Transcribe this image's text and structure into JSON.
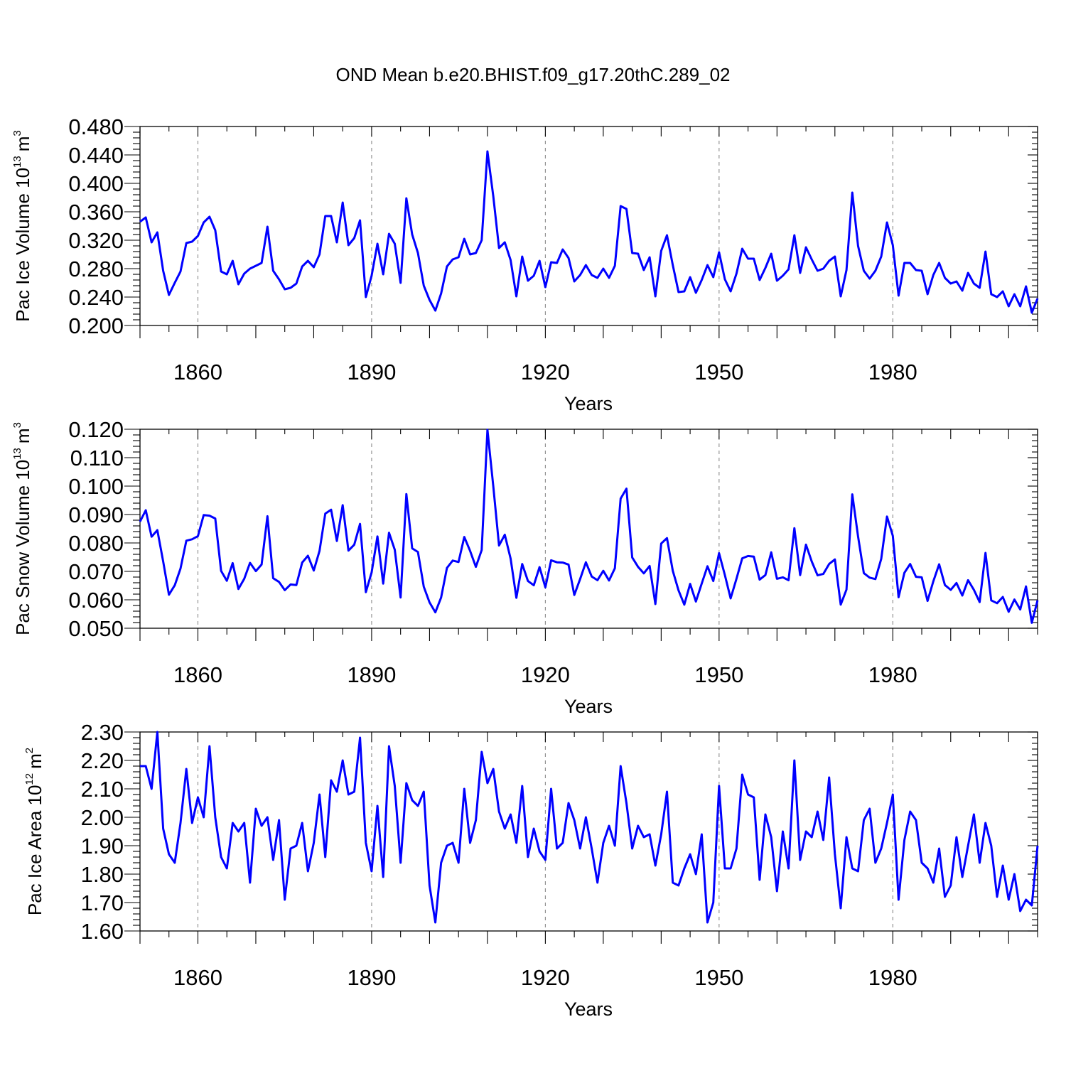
{
  "title": "OND Mean b.e20.BHIST.f09_g17.20thC.289_02",
  "chart_data": [
    {
      "type": "line",
      "title": "OND Mean b.e20.BHIST.f09_g17.20thC.289_02",
      "xlabel": "Years",
      "ylabel_main": "Pac Ice Volume 10",
      "ylabel_exp": "13",
      "ylabel_unit": "m",
      "ylabel_unit_exp": "3",
      "xlim": [
        1850,
        2005
      ],
      "ylim": [
        0.2,
        0.48
      ],
      "xticks": [
        1860,
        1890,
        1920,
        1950,
        1980
      ],
      "xtick_labels": [
        "1860",
        "1890",
        "1920",
        "1950",
        "1980"
      ],
      "yticks": [
        0.2,
        0.24,
        0.28,
        0.32,
        0.36,
        0.4,
        0.44,
        0.48
      ],
      "ytick_labels": [
        "0.200",
        "0.240",
        "0.280",
        "0.320",
        "0.360",
        "0.400",
        "0.440",
        "0.480"
      ],
      "grid": "vertical dashed at major x ticks",
      "x_start": 1850,
      "x_step": 1,
      "series": [
        {
          "name": "Pac Ice Volume",
          "color": "#0000ff",
          "values": [
            0.346,
            0.352,
            0.317,
            0.331,
            0.277,
            0.243,
            0.26,
            0.276,
            0.316,
            0.318,
            0.326,
            0.345,
            0.353,
            0.334,
            0.276,
            0.272,
            0.291,
            0.258,
            0.273,
            0.28,
            0.284,
            0.288,
            0.339,
            0.277,
            0.265,
            0.251,
            0.253,
            0.259,
            0.283,
            0.291,
            0.282,
            0.3,
            0.354,
            0.354,
            0.317,
            0.373,
            0.313,
            0.323,
            0.348,
            0.24,
            0.27,
            0.315,
            0.272,
            0.329,
            0.315,
            0.26,
            0.379,
            0.328,
            0.302,
            0.256,
            0.236,
            0.221,
            0.245,
            0.283,
            0.293,
            0.296,
            0.322,
            0.3,
            0.302,
            0.32,
            0.445,
            0.382,
            0.309,
            0.317,
            0.292,
            0.241,
            0.297,
            0.263,
            0.27,
            0.291,
            0.254,
            0.289,
            0.288,
            0.307,
            0.295,
            0.262,
            0.271,
            0.285,
            0.271,
            0.267,
            0.28,
            0.267,
            0.284,
            0.368,
            0.364,
            0.302,
            0.301,
            0.278,
            0.296,
            0.241,
            0.305,
            0.327,
            0.285,
            0.247,
            0.248,
            0.268,
            0.246,
            0.264,
            0.285,
            0.268,
            0.303,
            0.265,
            0.248,
            0.273,
            0.308,
            0.294,
            0.294,
            0.264,
            0.281,
            0.301,
            0.263,
            0.27,
            0.279,
            0.327,
            0.274,
            0.31,
            0.293,
            0.277,
            0.28,
            0.291,
            0.297,
            0.241,
            0.278,
            0.387,
            0.312,
            0.277,
            0.266,
            0.277,
            0.297,
            0.345,
            0.313,
            0.242,
            0.288,
            0.288,
            0.278,
            0.277,
            0.244,
            0.271,
            0.288,
            0.267,
            0.259,
            0.262,
            0.249,
            0.274,
            0.259,
            0.253,
            0.304,
            0.244,
            0.24,
            0.248,
            0.227,
            0.244,
            0.227,
            0.255,
            0.218,
            0.238
          ]
        }
      ]
    },
    {
      "type": "line",
      "xlabel": "Years",
      "ylabel_main": "Pac Snow Volume 10",
      "ylabel_exp": "13",
      "ylabel_unit": "m",
      "ylabel_unit_exp": "3",
      "xlim": [
        1850,
        2005
      ],
      "ylim": [
        0.05,
        0.12
      ],
      "xticks": [
        1860,
        1890,
        1920,
        1950,
        1980
      ],
      "xtick_labels": [
        "1860",
        "1890",
        "1920",
        "1950",
        "1980"
      ],
      "yticks": [
        0.05,
        0.06,
        0.07,
        0.08,
        0.09,
        0.1,
        0.11,
        0.12
      ],
      "ytick_labels": [
        "0.050",
        "0.060",
        "0.070",
        "0.080",
        "0.090",
        "0.100",
        "0.110",
        "0.120"
      ],
      "grid": "vertical dashed at major x ticks",
      "x_start": 1850,
      "x_step": 1,
      "series": [
        {
          "name": "Pac Snow Volume",
          "color": "#0000ff",
          "values": [
            0.0875,
            0.0915,
            0.0822,
            0.0845,
            0.0735,
            0.0618,
            0.0651,
            0.071,
            0.0808,
            0.0813,
            0.0824,
            0.0898,
            0.0896,
            0.0886,
            0.0702,
            0.0667,
            0.0729,
            0.0638,
            0.0674,
            0.073,
            0.0701,
            0.0724,
            0.0894,
            0.0676,
            0.0663,
            0.0634,
            0.0654,
            0.0652,
            0.0731,
            0.0755,
            0.0703,
            0.0772,
            0.0903,
            0.0917,
            0.0807,
            0.0933,
            0.0773,
            0.0794,
            0.0867,
            0.0627,
            0.0696,
            0.0823,
            0.0657,
            0.0836,
            0.0776,
            0.0608,
            0.0972,
            0.0781,
            0.0768,
            0.0646,
            0.0591,
            0.0556,
            0.0608,
            0.0712,
            0.0738,
            0.0733,
            0.0821,
            0.0772,
            0.0716,
            0.0775,
            0.1198,
            0.1,
            0.0791,
            0.0829,
            0.0745,
            0.0607,
            0.0726,
            0.0666,
            0.0651,
            0.0715,
            0.0644,
            0.0739,
            0.0732,
            0.0731,
            0.0724,
            0.0617,
            0.0673,
            0.0732,
            0.0682,
            0.0669,
            0.0702,
            0.0668,
            0.0711,
            0.0956,
            0.0991,
            0.0749,
            0.0716,
            0.0693,
            0.0719,
            0.0585,
            0.0798,
            0.0817,
            0.0702,
            0.0633,
            0.0583,
            0.0656,
            0.0594,
            0.0657,
            0.0718,
            0.0666,
            0.0764,
            0.0687,
            0.0605,
            0.0674,
            0.0746,
            0.0754,
            0.0752,
            0.0671,
            0.0687,
            0.0767,
            0.0674,
            0.0679,
            0.0669,
            0.0852,
            0.0687,
            0.0794,
            0.0735,
            0.0686,
            0.0691,
            0.0726,
            0.0742,
            0.0583,
            0.0636,
            0.0971,
            0.0823,
            0.0694,
            0.0678,
            0.0673,
            0.0744,
            0.0893,
            0.0825,
            0.0609,
            0.0695,
            0.0726,
            0.0681,
            0.0679,
            0.0596,
            0.0665,
            0.0725,
            0.0652,
            0.0635,
            0.0659,
            0.0615,
            0.0669,
            0.0635,
            0.0592,
            0.0765,
            0.0598,
            0.0588,
            0.061,
            0.0558,
            0.0601,
            0.0566,
            0.0647,
            0.0519,
            0.0598
          ]
        }
      ]
    },
    {
      "type": "line",
      "xlabel": "Years",
      "ylabel_main": "Pac Ice Area 10",
      "ylabel_exp": "12",
      "ylabel_unit": "m",
      "ylabel_unit_exp": "2",
      "xlim": [
        1850,
        2005
      ],
      "ylim": [
        1.6,
        2.3
      ],
      "xticks": [
        1860,
        1890,
        1920,
        1950,
        1980
      ],
      "xtick_labels": [
        "1860",
        "1890",
        "1920",
        "1950",
        "1980"
      ],
      "yticks": [
        1.6,
        1.7,
        1.8,
        1.9,
        2.0,
        2.1,
        2.2,
        2.3
      ],
      "ytick_labels": [
        "1.60",
        "1.70",
        "1.80",
        "1.90",
        "2.00",
        "2.10",
        "2.20",
        "2.30"
      ],
      "grid": "vertical dashed at major x ticks",
      "x_start": 1850,
      "x_step": 1,
      "series": [
        {
          "name": "Pac Ice Area",
          "color": "#0000ff",
          "values": [
            2.18,
            2.18,
            2.1,
            2.3,
            1.96,
            1.87,
            1.84,
            1.98,
            2.17,
            1.98,
            2.07,
            2.0,
            2.25,
            2.0,
            1.86,
            1.82,
            1.98,
            1.95,
            1.98,
            1.77,
            2.03,
            1.97,
            2.0,
            1.85,
            1.99,
            1.71,
            1.89,
            1.9,
            1.98,
            1.81,
            1.91,
            2.08,
            1.86,
            2.13,
            2.09,
            2.2,
            2.08,
            2.09,
            2.28,
            1.91,
            1.81,
            2.04,
            1.79,
            2.25,
            2.11,
            1.84,
            2.12,
            2.06,
            2.04,
            2.09,
            1.76,
            1.63,
            1.84,
            1.9,
            1.91,
            1.84,
            2.1,
            1.91,
            1.99,
            2.23,
            2.12,
            2.17,
            2.02,
            1.96,
            2.01,
            1.91,
            2.11,
            1.86,
            1.96,
            1.88,
            1.85,
            2.1,
            1.89,
            1.91,
            2.05,
            1.99,
            1.89,
            2.0,
            1.89,
            1.77,
            1.91,
            1.97,
            1.9,
            2.18,
            2.05,
            1.89,
            1.97,
            1.93,
            1.94,
            1.83,
            1.94,
            2.09,
            1.77,
            1.76,
            1.82,
            1.87,
            1.8,
            1.94,
            1.63,
            1.7,
            2.11,
            1.82,
            1.82,
            1.89,
            2.15,
            2.08,
            2.07,
            1.78,
            2.01,
            1.93,
            1.74,
            1.95,
            1.82,
            2.2,
            1.85,
            1.95,
            1.93,
            2.02,
            1.92,
            2.14,
            1.87,
            1.68,
            1.93,
            1.82,
            1.81,
            1.99,
            2.03,
            1.84,
            1.89,
            1.98,
            2.08,
            1.71,
            1.92,
            2.02,
            1.99,
            1.84,
            1.82,
            1.77,
            1.89,
            1.72,
            1.76,
            1.93,
            1.79,
            1.9,
            2.01,
            1.84,
            1.98,
            1.9,
            1.72,
            1.83,
            1.71,
            1.8,
            1.67,
            1.71,
            1.69,
            1.9
          ]
        }
      ]
    }
  ]
}
